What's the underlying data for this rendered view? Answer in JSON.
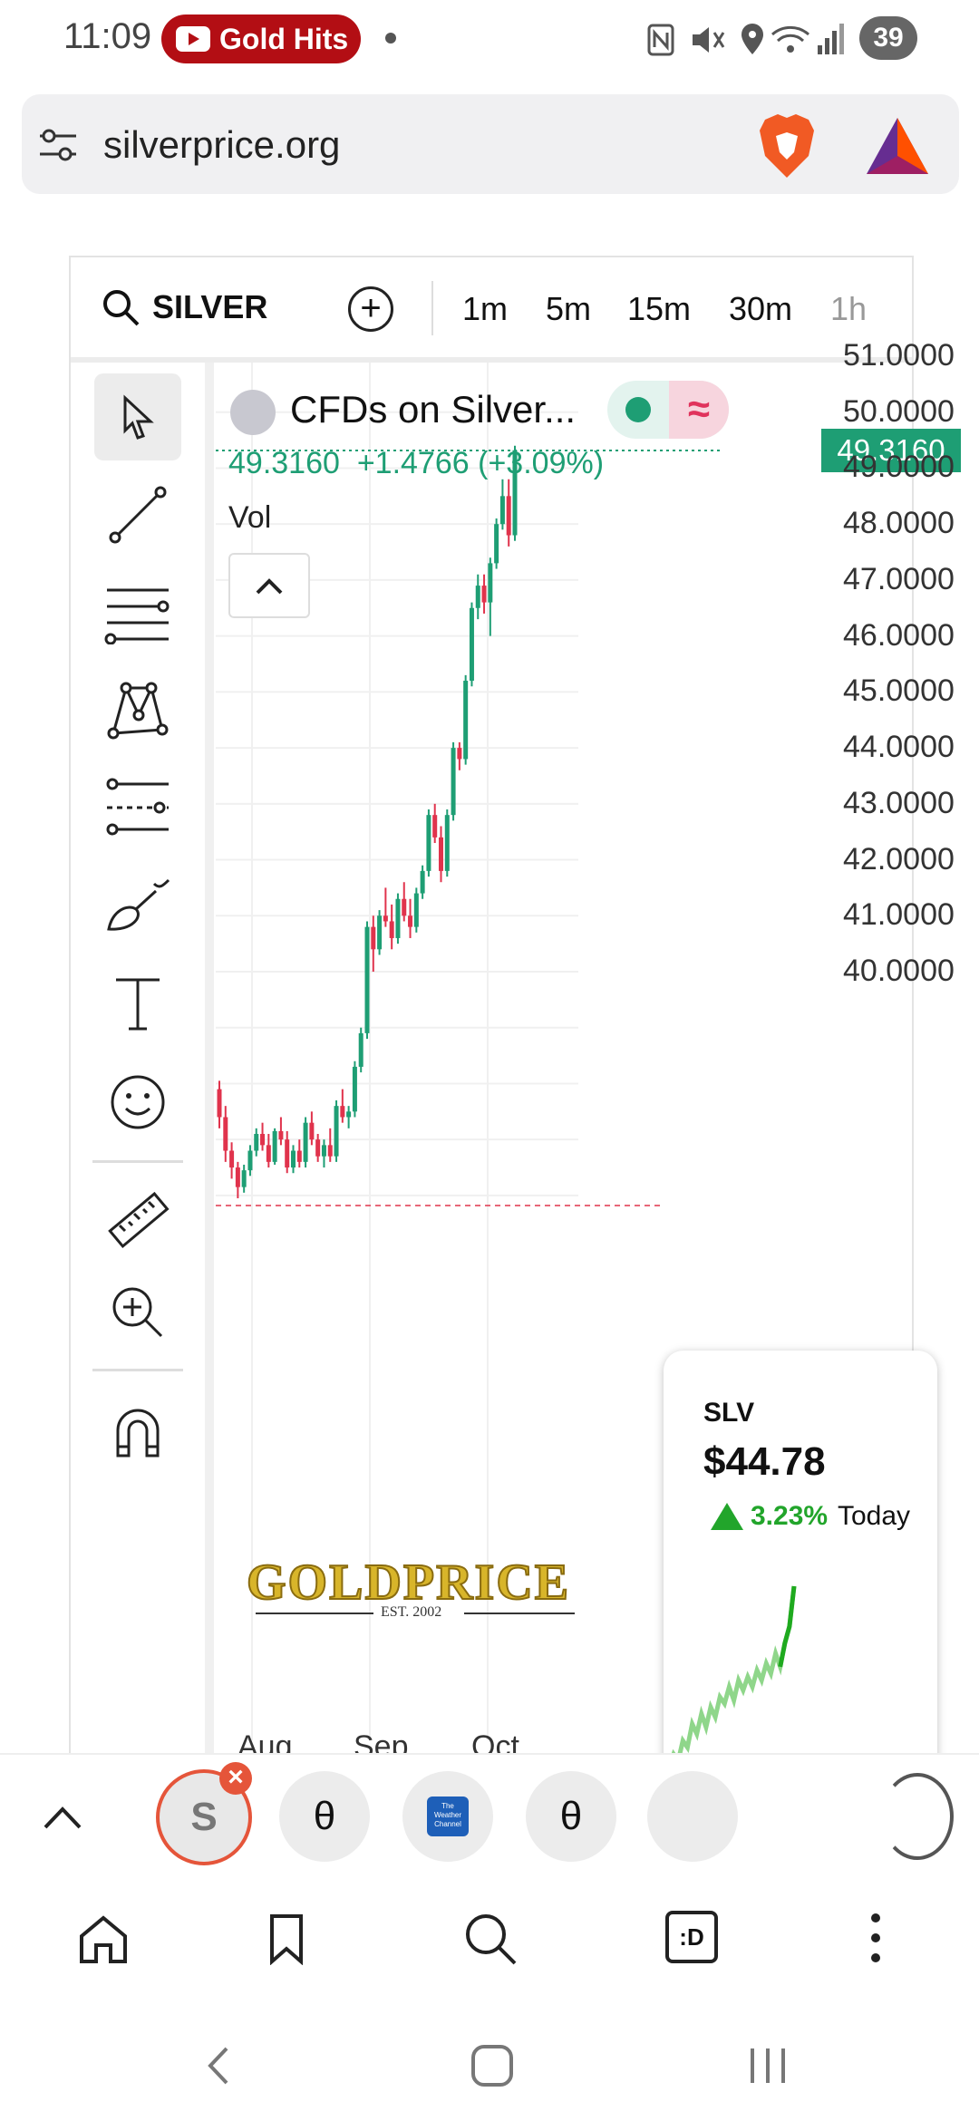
{
  "status_bar": {
    "time": "11:09",
    "media_label": "Gold Hits",
    "battery": "39",
    "icons": [
      "nfc-icon",
      "mute-icon",
      "location-icon",
      "wifi-icon",
      "signal-icon"
    ]
  },
  "url_bar": {
    "url": "silverprice.org"
  },
  "chart_toolbar": {
    "symbol": "SILVER",
    "timeframes": [
      "1m",
      "5m",
      "15m",
      "30m",
      "1h"
    ]
  },
  "legend": {
    "title": "CFDs on Silver...",
    "toggle_symbol": "≈",
    "last": "49.3160",
    "change": "+1.4766",
    "change_pct": "(+3.09%)",
    "vol_label": "Vol"
  },
  "current_price_label": "49.3160",
  "watermark": {
    "brand": "GOLDPRICE",
    "est": "EST. 2002"
  },
  "chart_data": {
    "type": "candlestick",
    "y_axis_labels": [
      "51.0000",
      "50.0000",
      "49.0000",
      "48.0000",
      "47.0000",
      "46.0000",
      "45.0000",
      "44.0000",
      "43.0000",
      "42.0000",
      "41.0000",
      "40.0000"
    ],
    "x_axis_labels": [
      "Aug",
      "Sep",
      "Oct"
    ],
    "ylim": [
      35.5,
      51.2
    ],
    "last_price": 49.316,
    "up_color": "#1e9e74",
    "down_color": "#e0334c",
    "candles": [
      [
        37.9,
        38.05,
        37.2,
        37.4
      ],
      [
        37.4,
        37.6,
        36.6,
        36.8
      ],
      [
        36.8,
        36.95,
        36.3,
        36.5
      ],
      [
        36.5,
        36.6,
        35.95,
        36.15
      ],
      [
        36.15,
        36.55,
        36.05,
        36.45
      ],
      [
        36.45,
        36.9,
        36.35,
        36.8
      ],
      [
        36.8,
        37.2,
        36.7,
        37.1
      ],
      [
        37.1,
        37.3,
        36.8,
        36.9
      ],
      [
        36.9,
        37.1,
        36.5,
        36.6
      ],
      [
        36.6,
        37.2,
        36.55,
        37.15
      ],
      [
        37.15,
        37.4,
        36.9,
        37.0
      ],
      [
        37.0,
        37.15,
        36.4,
        36.5
      ],
      [
        36.5,
        36.9,
        36.4,
        36.8
      ],
      [
        36.8,
        37.0,
        36.5,
        36.6
      ],
      [
        36.6,
        37.4,
        36.5,
        37.3
      ],
      [
        37.3,
        37.5,
        36.9,
        37.0
      ],
      [
        37.0,
        37.1,
        36.6,
        36.7
      ],
      [
        36.7,
        37.0,
        36.5,
        36.9
      ],
      [
        36.9,
        37.2,
        36.6,
        36.7
      ],
      [
        36.7,
        37.7,
        36.6,
        37.6
      ],
      [
        37.6,
        37.9,
        37.3,
        37.4
      ],
      [
        37.4,
        37.6,
        37.2,
        37.5
      ],
      [
        37.5,
        38.4,
        37.4,
        38.3
      ],
      [
        38.3,
        39.0,
        38.2,
        38.9
      ],
      [
        38.9,
        40.9,
        38.8,
        40.8
      ],
      [
        40.8,
        41.0,
        40.0,
        40.4
      ],
      [
        40.4,
        41.1,
        40.3,
        41.0
      ],
      [
        41.0,
        41.5,
        40.8,
        40.9
      ],
      [
        40.9,
        41.2,
        40.4,
        40.6
      ],
      [
        40.6,
        41.4,
        40.5,
        41.3
      ],
      [
        41.3,
        41.6,
        40.9,
        41.0
      ],
      [
        41.0,
        41.3,
        40.6,
        40.8
      ],
      [
        40.8,
        41.5,
        40.7,
        41.4
      ],
      [
        41.4,
        41.9,
        41.3,
        41.8
      ],
      [
        41.8,
        42.9,
        41.7,
        42.8
      ],
      [
        42.8,
        43.0,
        42.3,
        42.4
      ],
      [
        42.4,
        42.6,
        41.6,
        41.8
      ],
      [
        41.8,
        42.9,
        41.7,
        42.8
      ],
      [
        42.8,
        44.1,
        42.7,
        44.0
      ],
      [
        44.0,
        44.1,
        43.6,
        43.8
      ],
      [
        43.8,
        45.3,
        43.7,
        45.2
      ],
      [
        45.2,
        46.6,
        45.1,
        46.5
      ],
      [
        46.5,
        47.1,
        46.3,
        46.9
      ],
      [
        46.9,
        47.1,
        46.4,
        46.6
      ],
      [
        46.6,
        47.4,
        46.0,
        47.3
      ],
      [
        47.3,
        48.1,
        47.2,
        48.0
      ],
      [
        48.0,
        48.8,
        47.9,
        48.5
      ],
      [
        48.5,
        48.8,
        47.6,
        47.8
      ],
      [
        47.8,
        49.4,
        47.7,
        49.32
      ]
    ]
  },
  "slv_card": {
    "symbol": "SLV",
    "price": "$44.78",
    "change_pct": "3.23%",
    "period": "Today",
    "sparkline": [
      38.2,
      38.6,
      38.4,
      39.0,
      38.8,
      39.5,
      39.2,
      39.8,
      39.4,
      40.0,
      39.7,
      40.3,
      40.1,
      40.6,
      40.2,
      40.8,
      40.5,
      40.9,
      40.6,
      41.1,
      40.8,
      41.3,
      41.0,
      41.6,
      41.2,
      41.9,
      42.4,
      43.6
    ]
  },
  "tab_strip": {
    "tabs": [
      {
        "label": "S",
        "icon": "silverprice-tab-icon"
      },
      {
        "label": "θ",
        "icon": "theta-tab-icon"
      },
      {
        "label": "The Weather Channel",
        "icon": "weather-channel-tab-icon"
      },
      {
        "label": "θ",
        "icon": "theta-tab-icon"
      }
    ]
  },
  "bottom_nav": {
    "tab_count_label": ":D",
    "icons": [
      "home-icon",
      "bookmark-icon",
      "search-icon",
      "tabs-icon",
      "more-icon"
    ]
  }
}
